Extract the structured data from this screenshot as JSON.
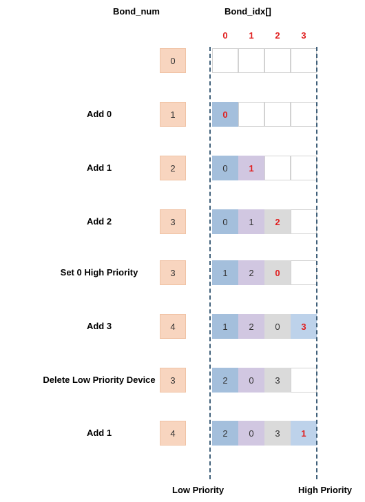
{
  "headers": {
    "bond_num": "Bond_num",
    "bond_idx": "Bond_idx[]"
  },
  "index_labels": [
    "0",
    "1",
    "2",
    "3"
  ],
  "footer": {
    "low": "Low Priority",
    "high": "High Priority"
  },
  "colors": {
    "slot_0": "#a4bfdc",
    "slot_1": "#d1c7e1",
    "slot_2": "#dadada",
    "slot_3": "#bdd2ea",
    "highlight_text": "#e02020",
    "bond_num_fill": "#f8d5bf"
  },
  "rows": [
    {
      "label": "",
      "bond_num": "0",
      "cells": [
        "",
        "",
        "",
        ""
      ],
      "highlight": -1
    },
    {
      "label": "Add 0",
      "bond_num": "1",
      "cells": [
        "0",
        "",
        "",
        ""
      ],
      "highlight": 0
    },
    {
      "label": "Add 1",
      "bond_num": "2",
      "cells": [
        "0",
        "1",
        "",
        ""
      ],
      "highlight": 1
    },
    {
      "label": "Add 2",
      "bond_num": "3",
      "cells": [
        "0",
        "1",
        "2",
        ""
      ],
      "highlight": 2
    },
    {
      "label": "Set 0 High Priority",
      "bond_num": "3",
      "cells": [
        "1",
        "2",
        "0",
        ""
      ],
      "highlight": 2
    },
    {
      "label": "Add 3",
      "bond_num": "4",
      "cells": [
        "1",
        "2",
        "0",
        "3"
      ],
      "highlight": 3
    },
    {
      "label": "Delete Low Priority Device",
      "bond_num": "3",
      "cells": [
        "2",
        "0",
        "3",
        ""
      ],
      "highlight": -1
    },
    {
      "label": "Add 1",
      "bond_num": "4",
      "cells": [
        "2",
        "0",
        "3",
        "1"
      ],
      "highlight": 3
    }
  ]
}
